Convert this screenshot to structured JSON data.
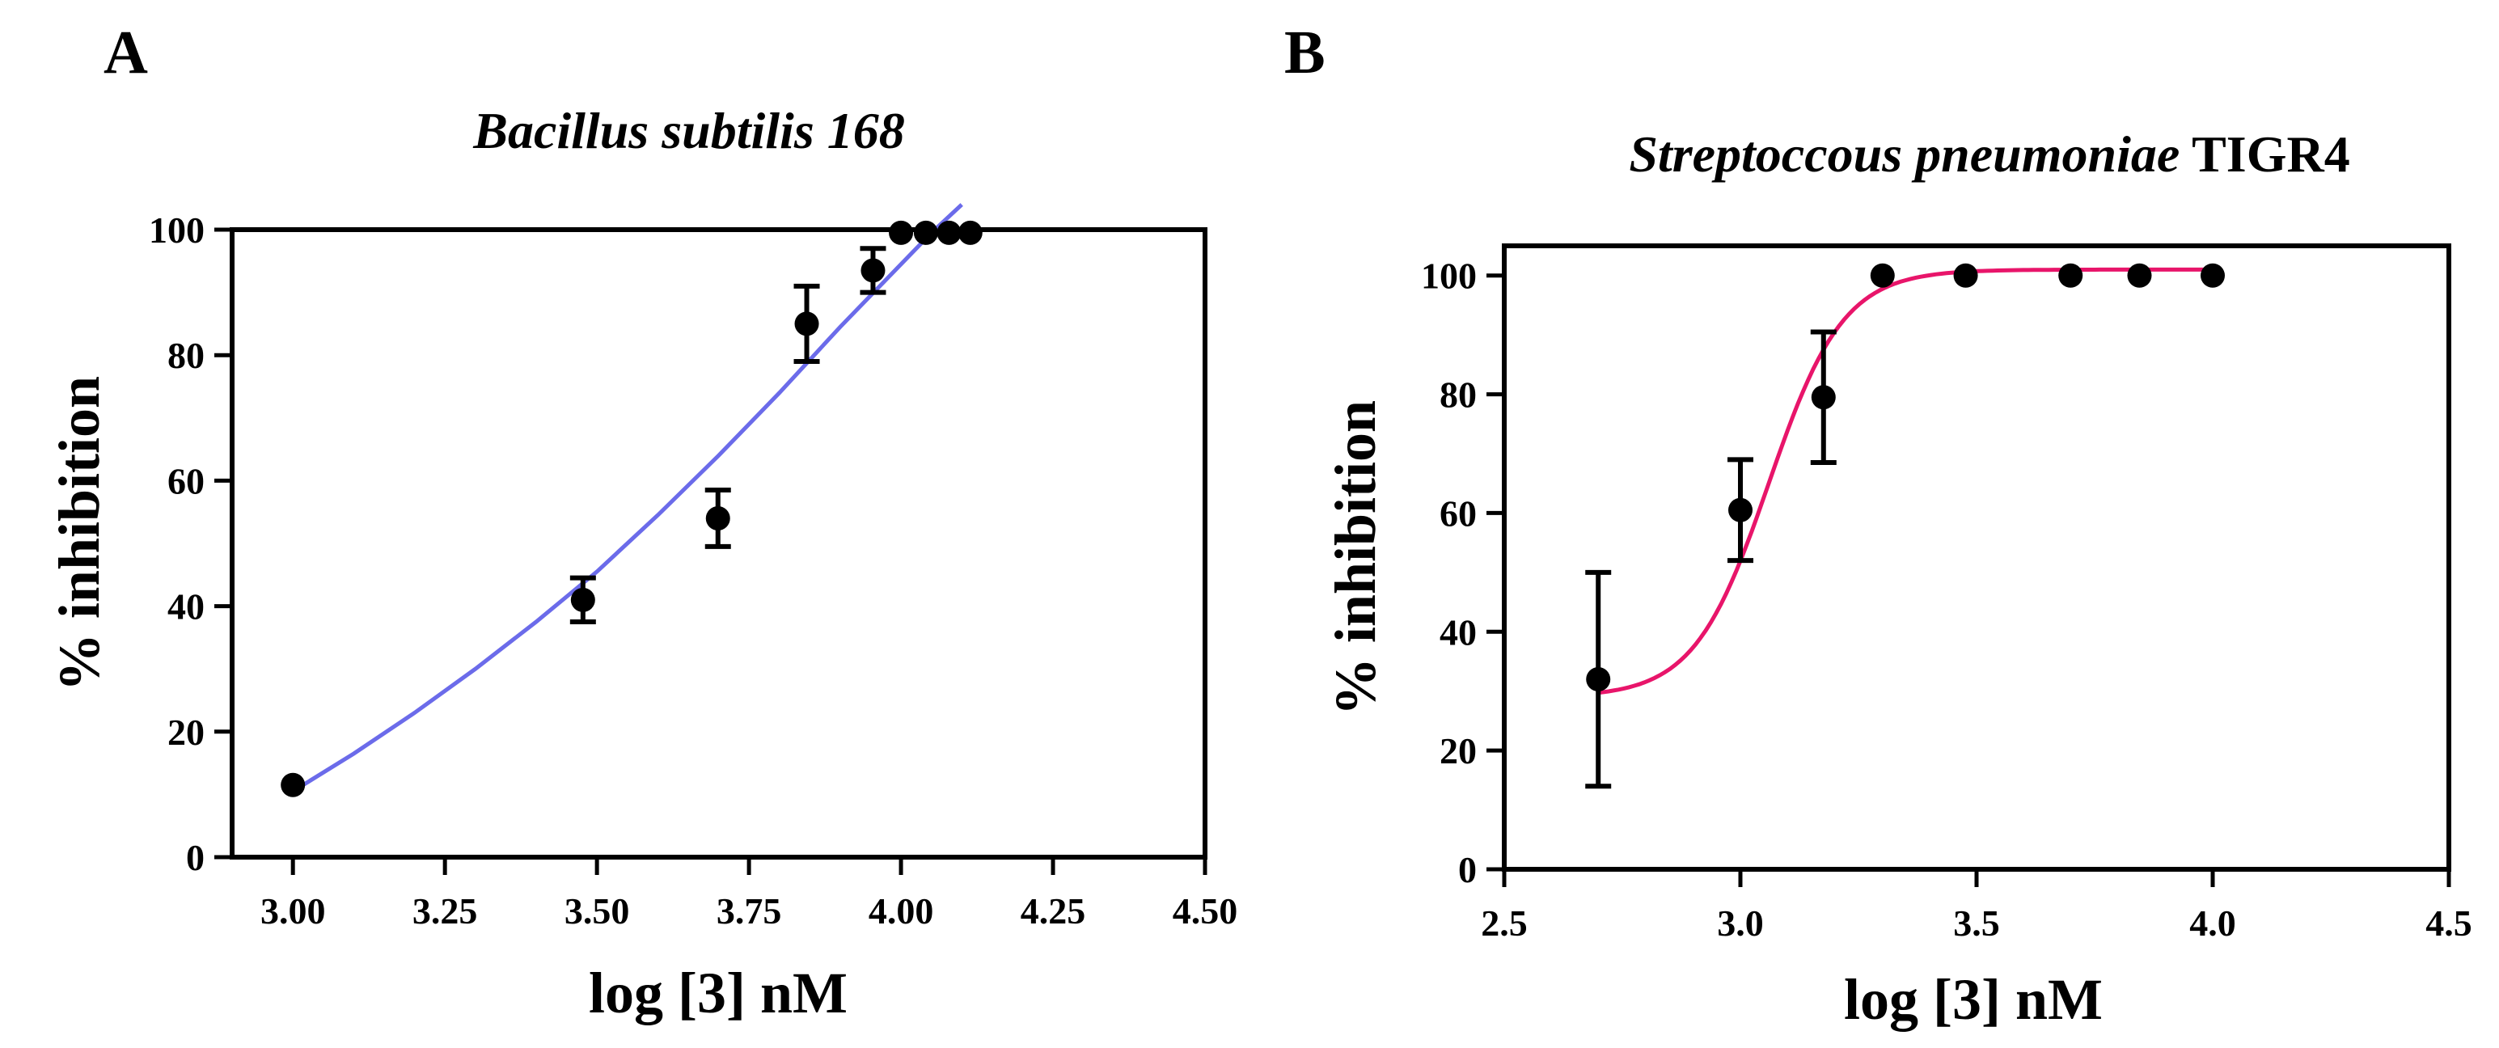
{
  "chart_data": [
    {
      "panel": "A",
      "type": "scatter",
      "title": "Bacillus subtilis 168",
      "xlabel": "log [3] nM",
      "ylabel": "% inhibition",
      "xlim": [
        2.9,
        4.5
      ],
      "ylim": [
        0,
        100
      ],
      "xticks": [
        "3.00",
        "3.25",
        "3.50",
        "3.75",
        "4.00",
        "4.25",
        "4.50"
      ],
      "yticks": [
        "0",
        "20",
        "40",
        "60",
        "80",
        "100"
      ],
      "curve_color": "#6b6bea",
      "series": [
        {
          "name": "data",
          "x": [
            3.0,
            3.477,
            3.699,
            3.845,
            3.954,
            4.0,
            4.041,
            4.079,
            4.114
          ],
          "y": [
            11.5,
            41.0,
            54.0,
            85.0,
            93.5,
            99.5,
            99.5,
            99.5,
            99.5
          ],
          "error": [
            0,
            3.5,
            4.5,
            6.0,
            3.5,
            0,
            0,
            0,
            0
          ]
        }
      ],
      "fit_curve": {
        "x": [
          3.0,
          3.1,
          3.2,
          3.3,
          3.4,
          3.5,
          3.6,
          3.7,
          3.8,
          3.9,
          4.0,
          4.05,
          4.1
        ],
        "y": [
          10.5,
          16.5,
          23.0,
          30.0,
          37.5,
          45.5,
          54.5,
          64.0,
          74.0,
          84.5,
          94.5,
          99.5,
          104.0
        ]
      }
    },
    {
      "panel": "B",
      "type": "scatter",
      "title_italic": "Streptoccous pneumoniae",
      "title_plain": "TIGR4",
      "xlabel": "log [3] nM",
      "ylabel": "% inhibition",
      "xlim": [
        2.5,
        4.5
      ],
      "ylim": [
        0,
        105
      ],
      "xticks": [
        "2.5",
        "3.0",
        "3.5",
        "4.0",
        "4.5"
      ],
      "yticks": [
        "0",
        "20",
        "40",
        "60",
        "80",
        "100"
      ],
      "curve_color": "#e8156a",
      "series": [
        {
          "name": "data",
          "x": [
            2.699,
            3.0,
            3.176,
            3.301,
            3.477,
            3.699,
            3.845,
            4.0
          ],
          "y": [
            32.0,
            60.5,
            79.5,
            100.0,
            100.0,
            100.0,
            100.0,
            100.0
          ],
          "error": [
            18.0,
            8.5,
            11.0,
            0,
            0,
            0,
            0,
            0
          ]
        }
      ],
      "fit_curve": {
        "bottom": 29.0,
        "top": 101.0,
        "logEC50": 3.06,
        "hill": 5.5,
        "xstart": 2.699,
        "xend": 4.0
      }
    }
  ]
}
